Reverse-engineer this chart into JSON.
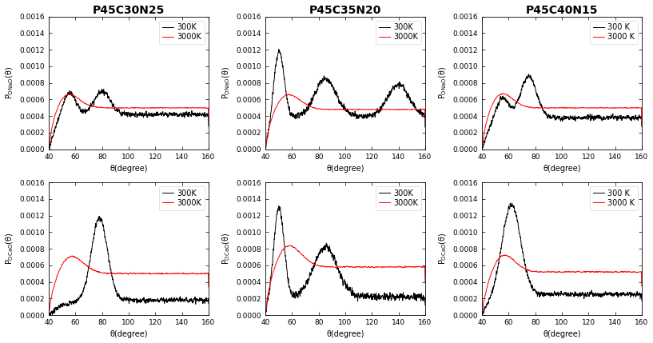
{
  "titles": [
    "P45C30N25",
    "P45C35N20",
    "P45C40N15"
  ],
  "ylabel_top": "P_{ONaO}(θ)",
  "ylabel_bot": "P_{OCaO}(θ)",
  "xlabel": "θ(degree)",
  "xlim": [
    40,
    160
  ],
  "ylim": [
    0.0,
    0.0016
  ],
  "yticks": [
    0.0,
    0.0002,
    0.0004,
    0.0006,
    0.0008,
    0.001,
    0.0012,
    0.0014,
    0.0016
  ],
  "xticks": [
    40,
    60,
    80,
    100,
    120,
    140,
    160
  ],
  "legend_300K": [
    "300K",
    "300K",
    "300 K"
  ],
  "legend_3000K": [
    "3000K",
    "3000K",
    "3000 K"
  ],
  "color_300K": "#000000",
  "color_3000K": "#ff0000",
  "linewidth": 0.7,
  "title_fontsize": 10,
  "label_fontsize": 7,
  "tick_fontsize": 6.5,
  "legend_fontsize": 7,
  "background_color": "#ffffff"
}
